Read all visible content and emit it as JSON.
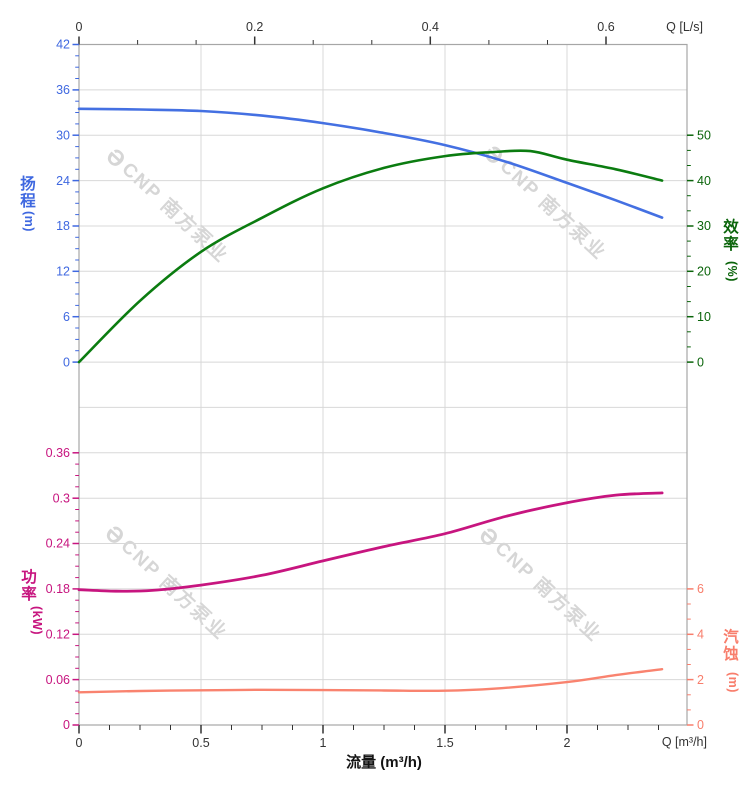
{
  "watermark": {
    "logo": "Ә",
    "text": "CNP 南方泵业"
  },
  "chart_data": {
    "type": "line",
    "description": "pump performance curves, two stacked panels sharing one flow axis",
    "grid": true,
    "x_axis_bottom": {
      "title": "流量 (m³/h)",
      "unit_label": "Q [m³/h]",
      "tick_labels": [
        "0",
        "0.5",
        "1",
        "1.5",
        "2"
      ],
      "range": [
        0,
        2.492
      ],
      "minor_step": 0.125,
      "color": "#333333"
    },
    "x_axis_top": {
      "unit_label": "Q [L/s]",
      "tick_labels": [
        "0",
        "0.2",
        "0.4",
        "0.6"
      ],
      "range": [
        0,
        0.6922
      ],
      "minor_divisions": 3,
      "color": "#333333"
    },
    "y_axes": [
      {
        "id": "head",
        "title": "扬程",
        "unit": "(m)",
        "side": "left",
        "color": "#3F68E0",
        "tick_labels": [
          "42",
          "36",
          "30",
          "24",
          "18",
          "12",
          "6",
          "0"
        ],
        "min": 0,
        "max": 42,
        "row_top": 0,
        "row_bottom": 7,
        "minor_divisions": 4
      },
      {
        "id": "efficiency",
        "title": "效率",
        "unit": "(%)",
        "side": "right",
        "color": "#0A640A",
        "tick_labels": [
          "50",
          "40",
          "30",
          "20",
          "10",
          "0"
        ],
        "min": 0,
        "max": 50,
        "row_top": 2,
        "row_bottom": 7,
        "minor_divisions": 3
      },
      {
        "id": "power",
        "title": "功率",
        "unit": "(kW)",
        "side": "left",
        "color": "#C7157F",
        "tick_labels": [
          "0.36",
          "0.3",
          "0.24",
          "0.18",
          "0.12",
          "0.06",
          "0"
        ],
        "min": 0,
        "max": 0.36,
        "row_top": 9,
        "row_bottom": 15,
        "minor_divisions": 4
      },
      {
        "id": "npsh",
        "title": "汽蚀",
        "unit": "(m)",
        "side": "right",
        "color": "#F87E6C",
        "tick_labels": [
          "6",
          "4",
          "2",
          "0"
        ],
        "min": 0,
        "max": 6,
        "row_top": 12,
        "row_bottom": 15,
        "minor_divisions": 3
      }
    ],
    "series": [
      {
        "name": "head-curve",
        "axis": "head",
        "color": "#4470E2",
        "width": 2.6,
        "x": [
          0,
          0.25,
          0.5,
          0.75,
          1.0,
          1.25,
          1.5,
          1.75,
          2.0,
          2.2,
          2.39
        ],
        "y": [
          33.5,
          33.4,
          33.2,
          32.6,
          31.6,
          30.3,
          28.7,
          26.5,
          23.7,
          21.4,
          19.1
        ]
      },
      {
        "name": "efficiency-curve",
        "axis": "efficiency",
        "color": "#0B7C10",
        "width": 2.6,
        "x": [
          0,
          0.25,
          0.5,
          0.75,
          1.0,
          1.25,
          1.5,
          1.7,
          1.85,
          2.0,
          2.2,
          2.39
        ],
        "y": [
          0,
          13.5,
          24.3,
          31.8,
          38.3,
          42.8,
          45.4,
          46.3,
          46.5,
          44.6,
          42.5,
          40.0
        ]
      },
      {
        "name": "power-curve",
        "axis": "power",
        "color": "#C7157F",
        "width": 2.8,
        "x": [
          0,
          0.15,
          0.3,
          0.5,
          0.75,
          1.0,
          1.25,
          1.5,
          1.75,
          2.0,
          2.2,
          2.39
        ],
        "y": [
          0.179,
          0.177,
          0.178,
          0.185,
          0.198,
          0.217,
          0.236,
          0.253,
          0.276,
          0.294,
          0.304,
          0.307
        ]
      },
      {
        "name": "npsh-curve",
        "axis": "npsh",
        "color": "#F9836F",
        "width": 2.4,
        "x": [
          0,
          0.25,
          0.5,
          0.75,
          1.0,
          1.25,
          1.5,
          1.7,
          2.0,
          2.2,
          2.39
        ],
        "y": [
          1.44,
          1.5,
          1.53,
          1.55,
          1.54,
          1.52,
          1.51,
          1.6,
          1.89,
          2.2,
          2.46
        ]
      }
    ]
  }
}
